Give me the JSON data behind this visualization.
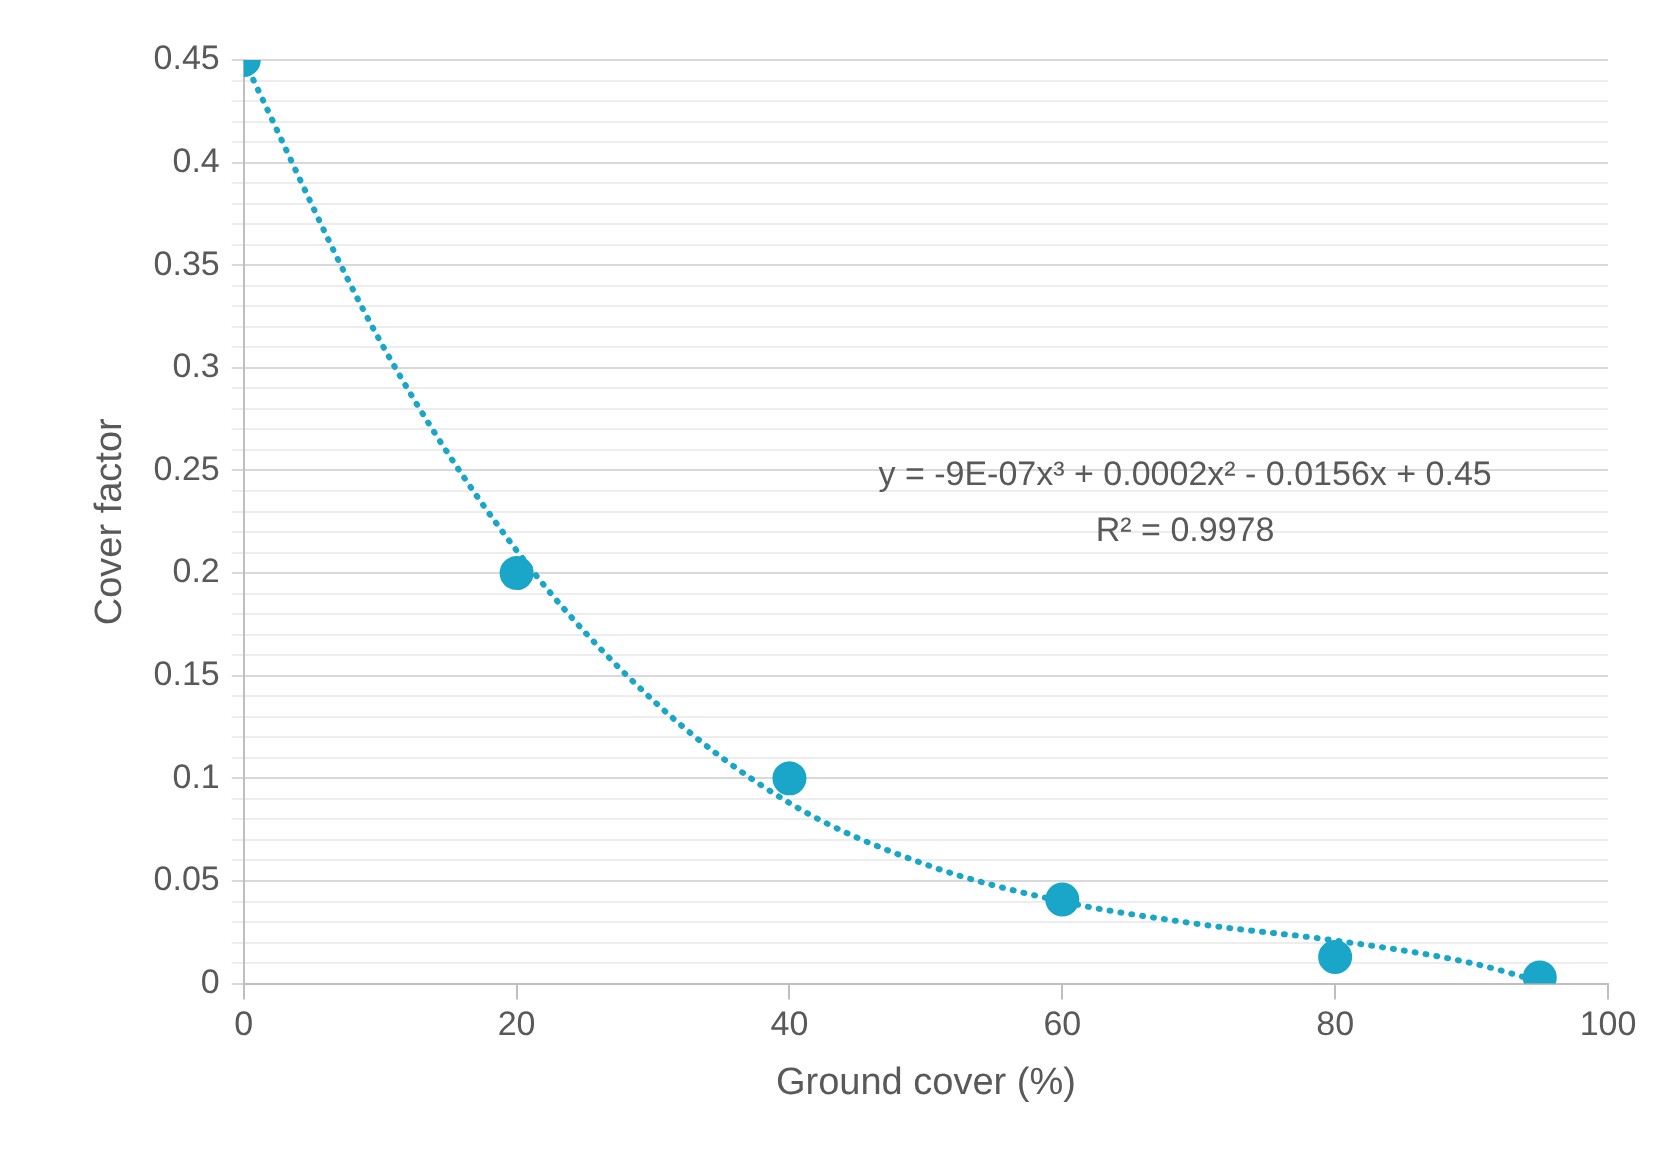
{
  "chart_data": {
    "type": "scatter",
    "xlabel": "Ground cover (%)",
    "ylabel": "Cover factor",
    "series": [
      {
        "color": "#1aa6c8",
        "marker": "circle",
        "x": [
          0,
          20,
          40,
          60,
          80,
          95
        ],
        "values": [
          0.45,
          0.2,
          0.1,
          0.041,
          0.013,
          0.003
        ]
      },
      {
        "type": "line",
        "color": "#1aa6c8",
        "marker": "none",
        "line_style": "dotted",
        "x": [
          0,
          10,
          20,
          30,
          40,
          50,
          60,
          70,
          80,
          90,
          95
        ],
        "values": [
          0.45,
          0.313,
          0.211,
          0.138,
          0.088,
          0.058,
          0.04,
          0.029,
          0.021,
          0.01,
          0.001
        ]
      }
    ],
    "xlim": [
      0,
      100
    ],
    "xticks": [
      0,
      20,
      40,
      60,
      80,
      100
    ],
    "ylim": [
      0,
      0.45
    ],
    "yticks": [
      0,
      {
        "value": 0.01,
        "label": null
      },
      {
        "value": 0.02,
        "label": null
      },
      {
        "value": 0.03,
        "label": null
      },
      {
        "value": 0.04,
        "label": null
      },
      0.05,
      {
        "value": 0.06,
        "label": null
      },
      {
        "value": 0.07,
        "label": null
      },
      {
        "value": 0.08,
        "label": null
      },
      {
        "value": 0.09,
        "label": null
      },
      0.1,
      {
        "value": 0.11,
        "label": null
      },
      {
        "value": 0.12,
        "label": null
      },
      {
        "value": 0.13,
        "label": null
      },
      {
        "value": 0.14,
        "label": null
      },
      0.15,
      {
        "value": 0.16,
        "label": null
      },
      {
        "value": 0.17,
        "label": null
      },
      {
        "value": 0.18,
        "label": null
      },
      {
        "value": 0.19,
        "label": null
      },
      0.2,
      {
        "value": 0.21,
        "label": null
      },
      {
        "value": 0.22,
        "label": null
      },
      {
        "value": 0.23,
        "label": null
      },
      {
        "value": 0.24,
        "label": null
      },
      0.25,
      {
        "value": 0.26,
        "label": null
      },
      {
        "value": 0.27,
        "label": null
      },
      {
        "value": 0.28,
        "label": null
      },
      {
        "value": 0.29,
        "label": null
      },
      0.3,
      {
        "value": 0.31,
        "label": null
      },
      {
        "value": 0.32,
        "label": null
      },
      {
        "value": 0.33,
        "label": null
      },
      {
        "value": 0.34,
        "label": null
      },
      0.35,
      {
        "value": 0.36,
        "label": null
      },
      {
        "value": 0.37,
        "label": null
      },
      {
        "value": 0.38,
        "label": null
      },
      {
        "value": 0.39,
        "label": null
      },
      0.4,
      {
        "value": 0.41,
        "label": null
      },
      {
        "value": 0.42,
        "label": null
      },
      {
        "value": 0.43,
        "label": null
      },
      {
        "value": 0.44,
        "label": null
      },
      0.45
    ],
    "grid": "y",
    "legend": false,
    "annotations": [
      "y = -9E-07x³ + 0.0002x² - 0.0156x + 0.45",
      "R² = 0.9978"
    ]
  }
}
